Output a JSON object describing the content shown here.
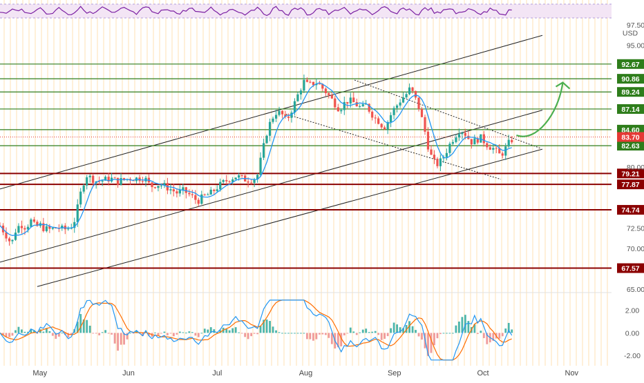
{
  "chart_data": {
    "type": "line",
    "currency": "USD",
    "price_axis": {
      "ticks": [
        {
          "label": "97.50",
          "value": 97.5
        },
        {
          "label": "95.00",
          "value": 95.0
        },
        {
          "label": "80.00",
          "value": 80.0
        },
        {
          "label": "72.50",
          "value": 72.5
        },
        {
          "label": "70.00",
          "value": 70.0
        },
        {
          "label": "65.00",
          "value": 65.0
        }
      ],
      "ylim": [
        64.9,
        98.0
      ]
    },
    "time_axis": {
      "labels": [
        {
          "label": "May",
          "month": 1
        },
        {
          "label": "Jun",
          "month": 2
        },
        {
          "label": "Jul",
          "month": 3
        },
        {
          "label": "Aug",
          "month": 4
        },
        {
          "label": "Sep",
          "month": 5
        },
        {
          "label": "Oct",
          "month": 6
        },
        {
          "label": "Nov",
          "month": 7
        }
      ],
      "xlim": [
        0.55,
        7.45
      ]
    },
    "levels": [
      {
        "label": "92.67",
        "value": 92.67,
        "kind": "resistance",
        "color": "#2e7d1b"
      },
      {
        "label": "90.86",
        "value": 90.86,
        "kind": "resistance",
        "color": "#2e7d1b"
      },
      {
        "label": "89.24",
        "value": 89.24,
        "kind": "resistance",
        "color": "#2e7d1b"
      },
      {
        "label": "87.14",
        "value": 87.14,
        "kind": "resistance",
        "color": "#2e7d1b"
      },
      {
        "label": "84.60",
        "value": 84.6,
        "kind": "resistance",
        "color": "#2e7d1b"
      },
      {
        "label": "82.63",
        "value": 82.63,
        "kind": "resistance",
        "color": "#2e7d1b"
      },
      {
        "label": "79.21",
        "value": 79.21,
        "kind": "support",
        "color": "#8b0000"
      },
      {
        "label": "77.87",
        "value": 77.87,
        "kind": "support",
        "color": "#8b0000"
      },
      {
        "label": "74.74",
        "value": 74.74,
        "kind": "support",
        "color": "#8b0000"
      },
      {
        "label": "67.57",
        "value": 67.57,
        "kind": "support",
        "color": "#8b0000"
      }
    ],
    "last_price": {
      "label": "83.70",
      "value": 83.7,
      "color": "#e53935"
    },
    "price_series": {
      "name": "",
      "points": [
        [
          0.55,
          72.8
        ],
        [
          0.62,
          71.6
        ],
        [
          0.68,
          70.5
        ],
        [
          0.72,
          72.1
        ],
        [
          0.78,
          73.0
        ],
        [
          0.84,
          72.6
        ],
        [
          0.9,
          73.4
        ],
        [
          0.95,
          72.6
        ],
        [
          1.0,
          72.9
        ],
        [
          1.05,
          72.4
        ],
        [
          1.12,
          72.3
        ],
        [
          1.2,
          72.6
        ],
        [
          1.27,
          72.3
        ],
        [
          1.33,
          72.5
        ],
        [
          1.38,
          73.0
        ],
        [
          1.43,
          75.2
        ],
        [
          1.48,
          77.8
        ],
        [
          1.53,
          79.0
        ],
        [
          1.58,
          78.6
        ],
        [
          1.65,
          78.2
        ],
        [
          1.72,
          78.4
        ],
        [
          1.8,
          78.6
        ],
        [
          1.88,
          78.2
        ],
        [
          1.95,
          78.5
        ],
        [
          2.02,
          78.6
        ],
        [
          2.1,
          78.6
        ],
        [
          2.18,
          78.7
        ],
        [
          2.25,
          77.6
        ],
        [
          2.32,
          77.9
        ],
        [
          2.4,
          77.7
        ],
        [
          2.47,
          77.3
        ],
        [
          2.55,
          76.8
        ],
        [
          2.62,
          77.1
        ],
        [
          2.7,
          76.5
        ],
        [
          2.78,
          75.8
        ],
        [
          2.85,
          76.4
        ],
        [
          2.92,
          76.7
        ],
        [
          3.0,
          77.5
        ],
        [
          3.07,
          78.1
        ],
        [
          3.15,
          78.6
        ],
        [
          3.22,
          78.9
        ],
        [
          3.3,
          78.5
        ],
        [
          3.37,
          78.4
        ],
        [
          3.45,
          78.8
        ],
        [
          3.52,
          82.3
        ],
        [
          3.57,
          84.7
        ],
        [
          3.62,
          86.0
        ],
        [
          3.67,
          86.8
        ],
        [
          3.73,
          86.5
        ],
        [
          3.78,
          85.6
        ],
        [
          3.83,
          86.8
        ],
        [
          3.88,
          88.0
        ],
        [
          3.93,
          89.4
        ],
        [
          3.98,
          90.5
        ],
        [
          4.03,
          90.0
        ],
        [
          4.08,
          90.3
        ],
        [
          4.13,
          90.4
        ],
        [
          4.18,
          89.8
        ],
        [
          4.23,
          89.2
        ],
        [
          4.28,
          88.5
        ],
        [
          4.33,
          87.8
        ],
        [
          4.38,
          87.1
        ],
        [
          4.43,
          87.8
        ],
        [
          4.48,
          88.2
        ],
        [
          4.53,
          88.0
        ],
        [
          4.58,
          87.6
        ],
        [
          4.63,
          87.2
        ],
        [
          4.68,
          87.6
        ],
        [
          4.73,
          86.8
        ],
        [
          4.78,
          86.0
        ],
        [
          4.83,
          85.6
        ],
        [
          4.88,
          84.8
        ],
        [
          4.93,
          85.7
        ],
        [
          4.98,
          86.9
        ],
        [
          5.03,
          87.6
        ],
        [
          5.08,
          88.4
        ],
        [
          5.13,
          88.9
        ],
        [
          5.18,
          89.7
        ],
        [
          5.23,
          88.6
        ],
        [
          5.28,
          87.2
        ],
        [
          5.33,
          85.1
        ],
        [
          5.38,
          82.6
        ],
        [
          5.43,
          80.8
        ],
        [
          5.48,
          80.3
        ],
        [
          5.53,
          80.8
        ],
        [
          5.58,
          81.8
        ],
        [
          5.63,
          82.9
        ],
        [
          5.68,
          83.8
        ],
        [
          5.73,
          84.5
        ],
        [
          5.78,
          84.4
        ],
        [
          5.83,
          83.6
        ],
        [
          5.88,
          83.0
        ],
        [
          5.93,
          83.4
        ],
        [
          5.98,
          83.6
        ],
        [
          6.03,
          82.9
        ],
        [
          6.08,
          82.5
        ],
        [
          6.13,
          82.2
        ],
        [
          6.18,
          81.5
        ],
        [
          6.23,
          81.8
        ],
        [
          6.28,
          82.8
        ],
        [
          6.33,
          83.4
        ]
      ]
    },
    "rsi": {
      "upper": 70,
      "lower": 30
    },
    "macd": {
      "ticks": [
        {
          "label": "2.00",
          "value": 2.0
        },
        {
          "label": "0.00",
          "value": 0.0
        },
        {
          "label": "-2.00",
          "value": -2.0
        }
      ],
      "ylim": [
        -2.6,
        3.2
      ]
    },
    "annotations": {
      "projection": "upward-arrow-toward-90.86",
      "channels": [
        "ascending-channel-upper",
        "ascending-channel-lower",
        "descending-channel"
      ]
    },
    "colors": {
      "grid_vertical": "#ffe2b3",
      "resistance": "#2e7d1b",
      "support": "#8b0000",
      "up_candle": "#26a69a",
      "down_candle": "#ef5350",
      "ma_line": "#2196f3",
      "macd_line": "#2196f3",
      "signal_line": "#ff6d00",
      "rsi_line": "#7b1fa2",
      "rsi_band": "#f3e5f5"
    }
  }
}
